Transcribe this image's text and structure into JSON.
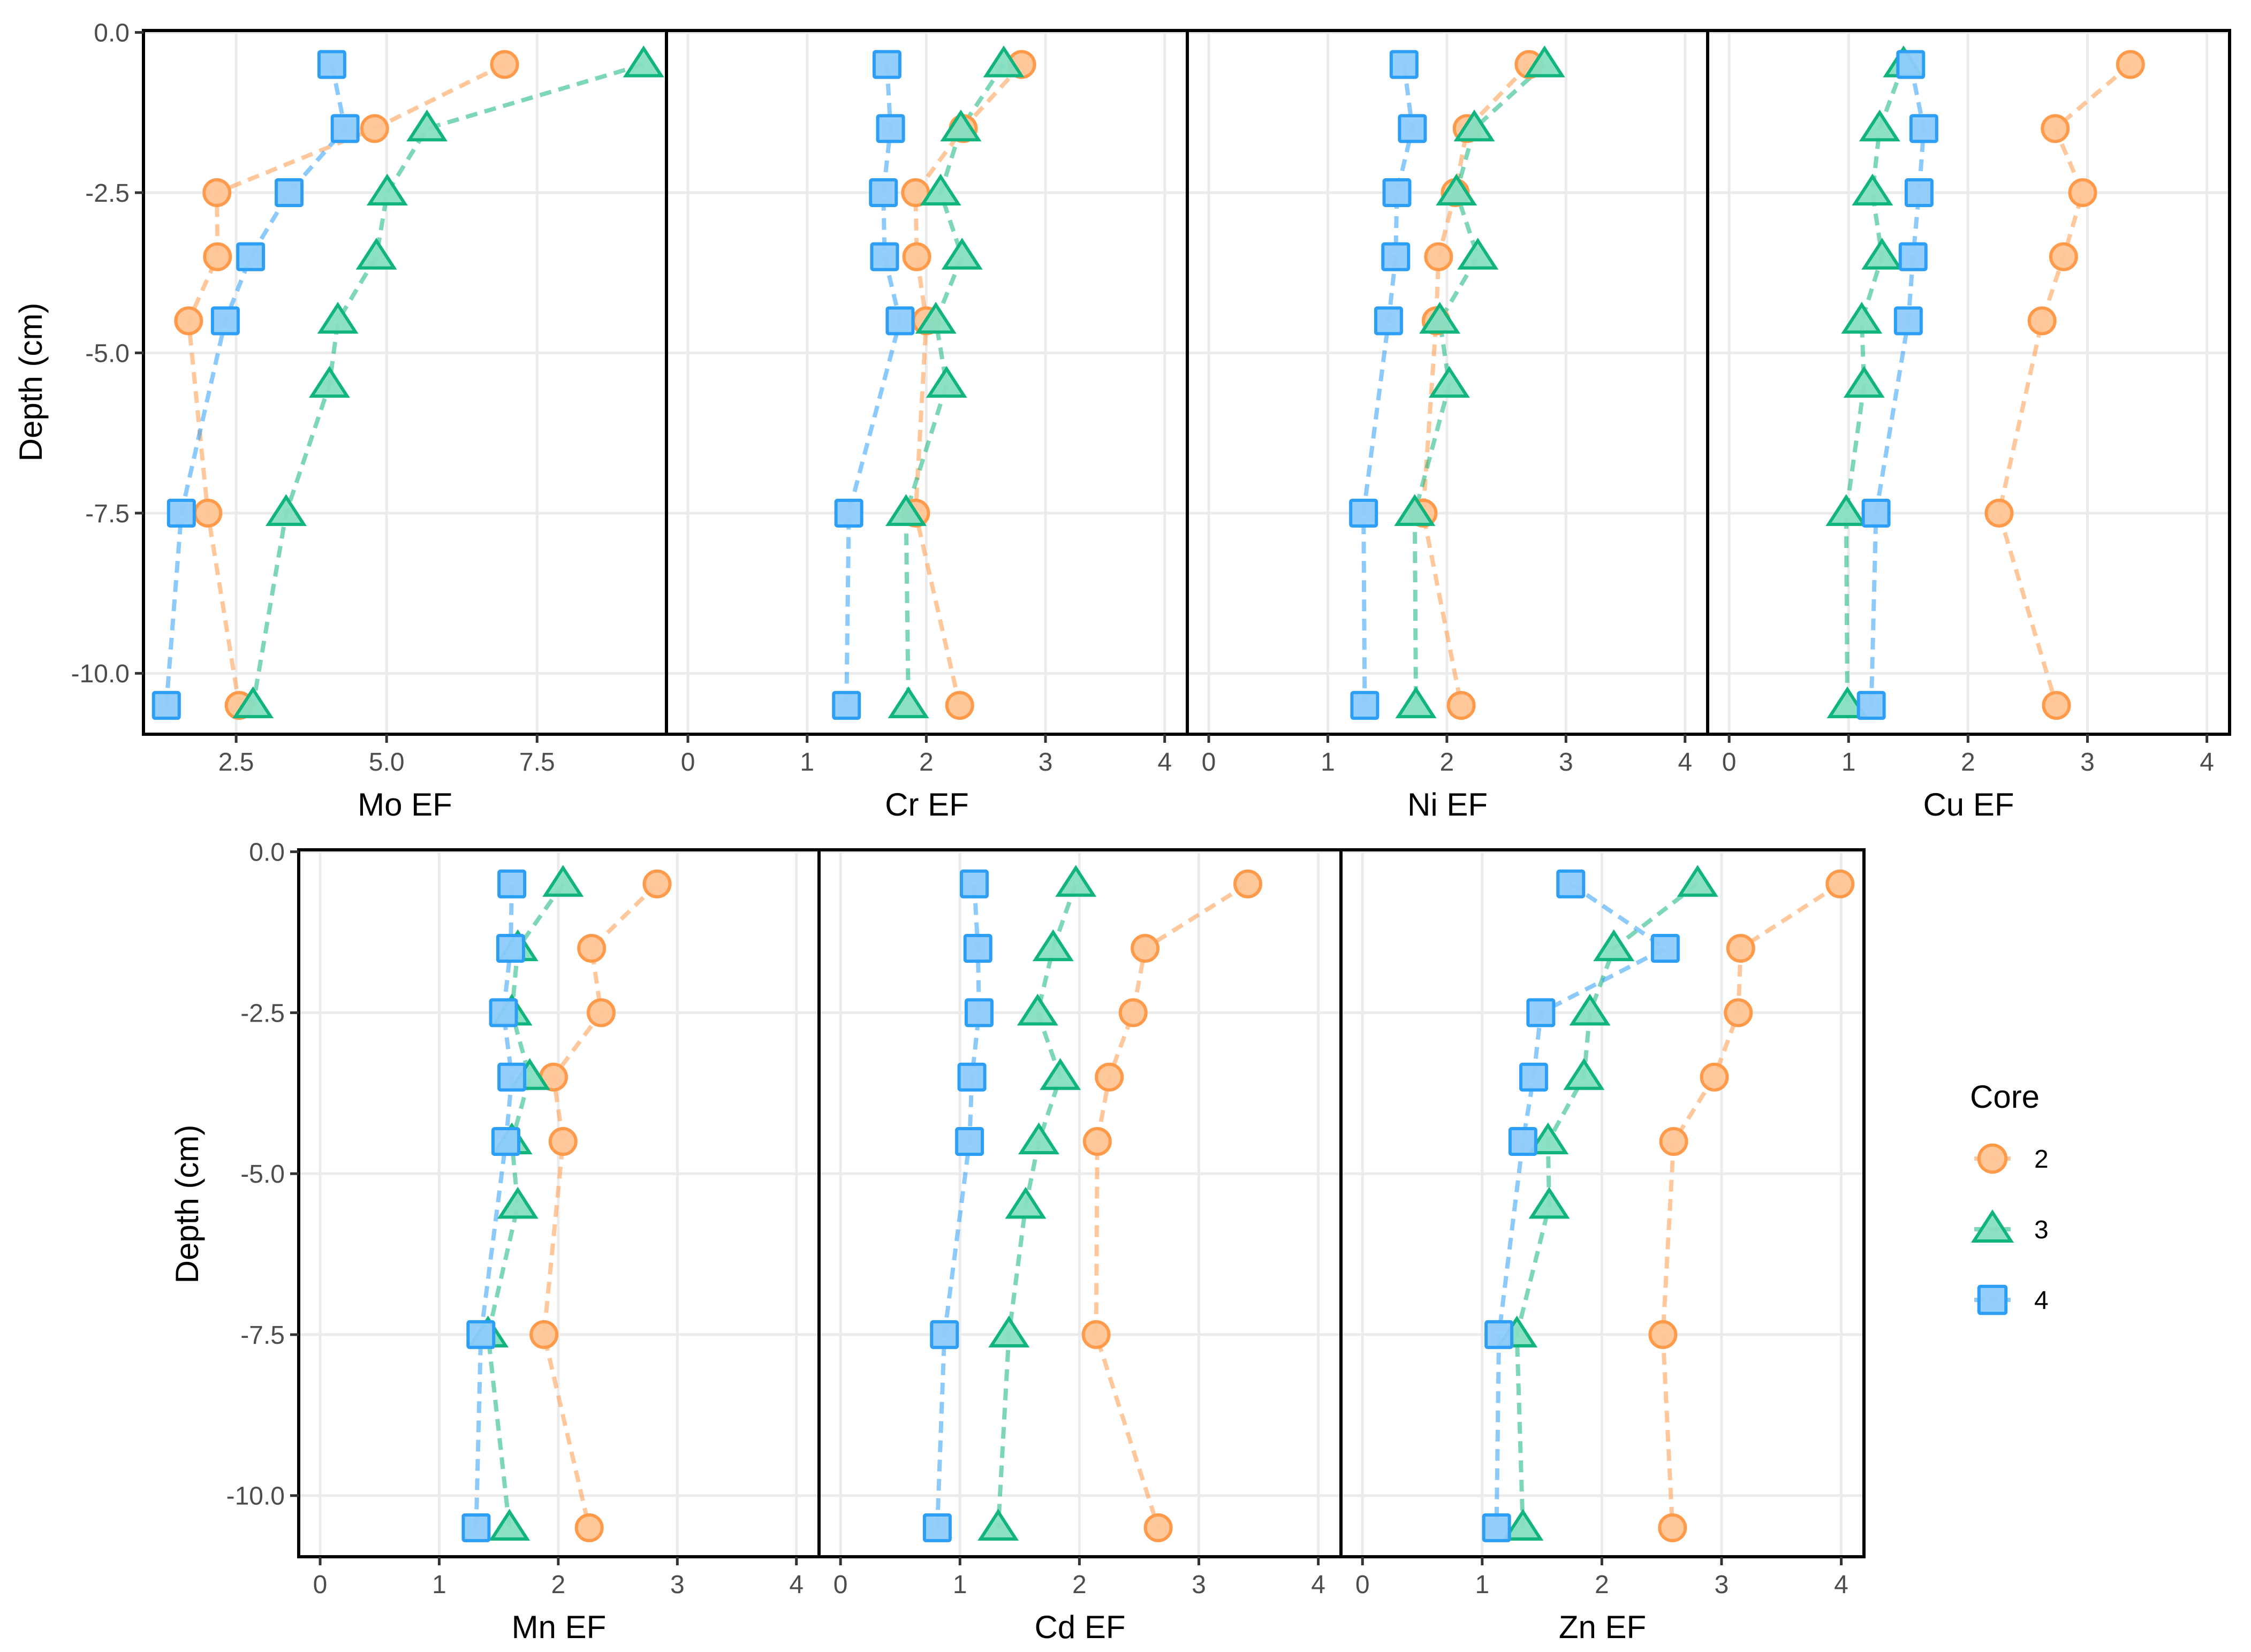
{
  "chart_data": {
    "type": "line",
    "description": "Depth profiles of enrichment factors (EF) for seven elements in three sediment cores",
    "y_label": "Depth (cm)",
    "y_ticks": [
      "0.0",
      "-2.5",
      "-5.0",
      "-7.5",
      "-10.0"
    ],
    "y_tick_values": [
      0,
      -2.5,
      -5,
      -7.5,
      -10
    ],
    "ylim": [
      -10.95,
      0.03
    ],
    "depths": [
      -0.5,
      -1.5,
      -2.5,
      -3.5,
      -4.5,
      -5.5,
      -7.5,
      -10.5
    ],
    "grid": true,
    "legend": {
      "title": "Core",
      "position": "right",
      "entries": [
        {
          "label": "2",
          "shape": "circle",
          "color": "#FF9A4A",
          "fill": "#FFC595"
        },
        {
          "label": "3",
          "shape": "triangle",
          "color": "#12B47E",
          "fill": "#86DEC1"
        },
        {
          "label": "4",
          "shape": "square",
          "color": "#2C9EF5",
          "fill": "#8DCBFC"
        }
      ]
    },
    "panels": [
      {
        "name": "Mo",
        "xlabel": "Mo EF",
        "x_ticks": [
          "2.5",
          "5.0",
          "7.5"
        ],
        "x_tick_values": [
          2.5,
          5.0,
          7.5
        ],
        "xlim": [
          0.96,
          9.65
        ],
        "series": [
          {
            "core": "2",
            "points": [
              [
                6.96,
                -0.5
              ],
              [
                4.8,
                -1.5
              ],
              [
                2.18,
                -2.5
              ],
              [
                2.19,
                -3.5
              ],
              [
                1.71,
                -4.5
              ],
              [
                2.03,
                -7.5
              ],
              [
                2.55,
                -10.5
              ]
            ]
          },
          {
            "core": "3",
            "points": [
              [
                9.27,
                -0.5
              ],
              [
                5.67,
                -1.5
              ],
              [
                5.01,
                -2.5
              ],
              [
                4.83,
                -3.5
              ],
              [
                4.19,
                -4.5
              ],
              [
                4.05,
                -5.5
              ],
              [
                3.33,
                -7.5
              ],
              [
                2.78,
                -10.5
              ]
            ]
          },
          {
            "core": "4",
            "points": [
              [
                4.09,
                -0.5
              ],
              [
                4.31,
                -1.5
              ],
              [
                3.38,
                -2.5
              ],
              [
                2.74,
                -3.5
              ],
              [
                2.32,
                -4.5
              ],
              [
                1.59,
                -7.5
              ],
              [
                1.34,
                -10.5
              ]
            ]
          }
        ]
      },
      {
        "name": "Cr",
        "xlabel": "Cr EF",
        "x_ticks": [
          "0",
          "1",
          "2",
          "3",
          "4"
        ],
        "x_tick_values": [
          0,
          1,
          2,
          3,
          4
        ],
        "xlim": [
          -0.18,
          4.19
        ],
        "series": [
          {
            "core": "2",
            "points": [
              [
                2.8,
                -0.5
              ],
              [
                2.31,
                -1.5
              ],
              [
                1.91,
                -2.5
              ],
              [
                1.92,
                -3.5
              ],
              [
                2.0,
                -4.5
              ],
              [
                1.91,
                -7.5
              ],
              [
                2.28,
                -10.5
              ]
            ]
          },
          {
            "core": "3",
            "points": [
              [
                2.65,
                -0.5
              ],
              [
                2.29,
                -1.5
              ],
              [
                2.12,
                -2.5
              ],
              [
                2.3,
                -3.5
              ],
              [
                2.08,
                -4.5
              ],
              [
                2.17,
                -5.5
              ],
              [
                1.83,
                -7.5
              ],
              [
                1.85,
                -10.5
              ]
            ]
          },
          {
            "core": "4",
            "points": [
              [
                1.67,
                -0.5
              ],
              [
                1.7,
                -1.5
              ],
              [
                1.64,
                -2.5
              ],
              [
                1.65,
                -3.5
              ],
              [
                1.78,
                -4.5
              ],
              [
                1.35,
                -7.5
              ],
              [
                1.33,
                -10.5
              ]
            ]
          }
        ]
      },
      {
        "name": "Ni",
        "xlabel": "Ni EF",
        "x_ticks": [
          "0",
          "1",
          "2",
          "3",
          "4"
        ],
        "x_tick_values": [
          0,
          1,
          2,
          3,
          4
        ],
        "xlim": [
          -0.18,
          4.19
        ],
        "series": [
          {
            "core": "2",
            "points": [
              [
                2.69,
                -0.5
              ],
              [
                2.17,
                -1.5
              ],
              [
                2.07,
                -2.5
              ],
              [
                1.93,
                -3.5
              ],
              [
                1.91,
                -4.5
              ],
              [
                1.8,
                -7.5
              ],
              [
                2.12,
                -10.5
              ]
            ]
          },
          {
            "core": "3",
            "points": [
              [
                2.82,
                -0.5
              ],
              [
                2.23,
                -1.5
              ],
              [
                2.08,
                -2.5
              ],
              [
                2.26,
                -3.5
              ],
              [
                1.94,
                -4.5
              ],
              [
                2.02,
                -5.5
              ],
              [
                1.73,
                -7.5
              ],
              [
                1.74,
                -10.5
              ]
            ]
          },
          {
            "core": "4",
            "points": [
              [
                1.64,
                -0.5
              ],
              [
                1.71,
                -1.5
              ],
              [
                1.58,
                -2.5
              ],
              [
                1.57,
                -3.5
              ],
              [
                1.51,
                -4.5
              ],
              [
                1.3,
                -7.5
              ],
              [
                1.31,
                -10.5
              ]
            ]
          }
        ]
      },
      {
        "name": "Cu",
        "xlabel": "Cu EF",
        "x_ticks": [
          "0",
          "1",
          "2",
          "3",
          "4"
        ],
        "x_tick_values": [
          0,
          1,
          2,
          3,
          4
        ],
        "xlim": [
          -0.18,
          4.19
        ],
        "series": [
          {
            "core": "2",
            "points": [
              [
                3.36,
                -0.5
              ],
              [
                2.73,
                -1.5
              ],
              [
                2.96,
                -2.5
              ],
              [
                2.8,
                -3.5
              ],
              [
                2.62,
                -4.5
              ],
              [
                2.26,
                -7.5
              ],
              [
                2.74,
                -10.5
              ]
            ]
          },
          {
            "core": "3",
            "points": [
              [
                1.46,
                -0.5
              ],
              [
                1.26,
                -1.5
              ],
              [
                1.2,
                -2.5
              ],
              [
                1.28,
                -3.5
              ],
              [
                1.11,
                -4.5
              ],
              [
                1.13,
                -5.5
              ],
              [
                0.98,
                -7.5
              ],
              [
                0.99,
                -10.5
              ]
            ]
          },
          {
            "core": "4",
            "points": [
              [
                1.52,
                -0.5
              ],
              [
                1.63,
                -1.5
              ],
              [
                1.59,
                -2.5
              ],
              [
                1.54,
                -3.5
              ],
              [
                1.5,
                -4.5
              ],
              [
                1.23,
                -7.5
              ],
              [
                1.19,
                -10.5
              ]
            ]
          }
        ]
      },
      {
        "name": "Mn",
        "xlabel": "Mn EF",
        "x_ticks": [
          "0",
          "1",
          "2",
          "3",
          "4"
        ],
        "x_tick_values": [
          0,
          1,
          2,
          3,
          4
        ],
        "xlim": [
          -0.18,
          4.19
        ],
        "series": [
          {
            "core": "2",
            "points": [
              [
                2.83,
                -0.5
              ],
              [
                2.28,
                -1.5
              ],
              [
                2.36,
                -2.5
              ],
              [
                1.96,
                -3.5
              ],
              [
                2.04,
                -4.5
              ],
              [
                1.88,
                -7.5
              ],
              [
                2.26,
                -10.5
              ]
            ]
          },
          {
            "core": "3",
            "points": [
              [
                2.04,
                -0.5
              ],
              [
                1.66,
                -1.5
              ],
              [
                1.61,
                -2.5
              ],
              [
                1.76,
                -3.5
              ],
              [
                1.61,
                -4.5
              ],
              [
                1.66,
                -5.5
              ],
              [
                1.41,
                -7.5
              ],
              [
                1.59,
                -10.5
              ]
            ]
          },
          {
            "core": "4",
            "points": [
              [
                1.61,
                -0.5
              ],
              [
                1.6,
                -1.5
              ],
              [
                1.54,
                -2.5
              ],
              [
                1.61,
                -3.5
              ],
              [
                1.56,
                -4.5
              ],
              [
                1.35,
                -7.5
              ],
              [
                1.31,
                -10.5
              ]
            ]
          }
        ]
      },
      {
        "name": "Cd",
        "xlabel": "Cd EF",
        "x_ticks": [
          "0",
          "1",
          "2",
          "3",
          "4"
        ],
        "x_tick_values": [
          0,
          1,
          2,
          3,
          4
        ],
        "xlim": [
          -0.18,
          4.19
        ],
        "series": [
          {
            "core": "2",
            "points": [
              [
                3.41,
                -0.5
              ],
              [
                2.55,
                -1.5
              ],
              [
                2.45,
                -2.5
              ],
              [
                2.25,
                -3.5
              ],
              [
                2.15,
                -4.5
              ],
              [
                2.14,
                -7.5
              ],
              [
                2.66,
                -10.5
              ]
            ]
          },
          {
            "core": "3",
            "points": [
              [
                1.97,
                -0.5
              ],
              [
                1.78,
                -1.5
              ],
              [
                1.65,
                -2.5
              ],
              [
                1.84,
                -3.5
              ],
              [
                1.66,
                -4.5
              ],
              [
                1.55,
                -5.5
              ],
              [
                1.41,
                -7.5
              ],
              [
                1.32,
                -10.5
              ]
            ]
          },
          {
            "core": "4",
            "points": [
              [
                1.12,
                -0.5
              ],
              [
                1.15,
                -1.5
              ],
              [
                1.16,
                -2.5
              ],
              [
                1.1,
                -3.5
              ],
              [
                1.08,
                -4.5
              ],
              [
                0.87,
                -7.5
              ],
              [
                0.81,
                -10.5
              ]
            ]
          }
        ]
      },
      {
        "name": "Zn",
        "xlabel": "Zn EF",
        "x_ticks": [
          "0",
          "1",
          "2",
          "3",
          "4"
        ],
        "x_tick_values": [
          0,
          1,
          2,
          3,
          4
        ],
        "xlim": [
          -0.18,
          4.19
        ],
        "series": [
          {
            "core": "2",
            "points": [
              [
                3.99,
                -0.5
              ],
              [
                3.16,
                -1.5
              ],
              [
                3.14,
                -2.5
              ],
              [
                2.94,
                -3.5
              ],
              [
                2.6,
                -4.5
              ],
              [
                2.51,
                -7.5
              ],
              [
                2.59,
                -10.5
              ]
            ]
          },
          {
            "core": "3",
            "points": [
              [
                2.8,
                -0.5
              ],
              [
                2.1,
                -1.5
              ],
              [
                1.9,
                -2.5
              ],
              [
                1.85,
                -3.5
              ],
              [
                1.55,
                -4.5
              ],
              [
                1.56,
                -5.5
              ],
              [
                1.29,
                -7.5
              ],
              [
                1.34,
                -10.5
              ]
            ]
          },
          {
            "core": "4",
            "points": [
              [
                1.74,
                -0.5
              ],
              [
                2.53,
                -1.5
              ],
              [
                1.49,
                -2.5
              ],
              [
                1.43,
                -3.5
              ],
              [
                1.34,
                -4.5
              ],
              [
                1.14,
                -7.5
              ],
              [
                1.12,
                -10.5
              ]
            ]
          }
        ]
      }
    ]
  }
}
